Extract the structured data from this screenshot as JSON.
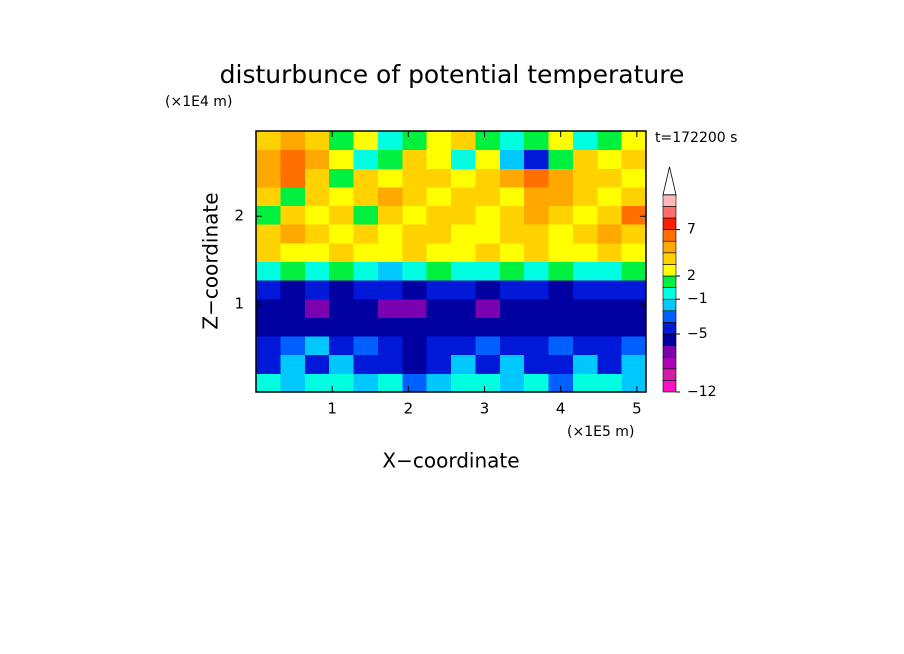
{
  "chart_data": {
    "type": "contour",
    "title": "disturbunce of potential temperature",
    "time_label": "t=172200 s",
    "y_unit": "(×1E4 m)",
    "x_unit": "(×1E5 m)",
    "xlabel": "X−coordinate",
    "ylabel": "Z−coordinate",
    "xlim": [
      0,
      5.12
    ],
    "ylim": [
      0,
      2.97
    ],
    "xticks": [
      1,
      2,
      3,
      4,
      5
    ],
    "yticks": [
      1,
      2
    ],
    "levels": [
      -12,
      -10,
      -8,
      -7,
      -6,
      -5,
      -4,
      -2,
      -1,
      1,
      2,
      3,
      5,
      6,
      7,
      9,
      11,
      13
    ],
    "colors": [
      "#ff10c8",
      "#d81aa8",
      "#b000b8",
      "#7a00b0",
      "#0000a0",
      "#0018d8",
      "#0060ff",
      "#00c8ff",
      "#00ffe0",
      "#00f040",
      "#ffff00",
      "#ffd200",
      "#ffa800",
      "#ff7000",
      "#ff1e00",
      "#ff6e6e",
      "#ffb8b8"
    ],
    "colorbar_ticks": [
      {
        "value": -12,
        "label": "−12"
      },
      {
        "value": -5,
        "label": "−5"
      },
      {
        "value": -1,
        "label": "−1"
      },
      2,
      7
    ],
    "z": [
      [
        0,
        -1.5,
        0,
        0,
        -1.5,
        0,
        -3,
        -1.5,
        0,
        0,
        -1.5,
        0,
        -3,
        0,
        0,
        -1.5
      ],
      [
        -4.5,
        -1.5,
        -4.5,
        -1.5,
        -4.5,
        -4.5,
        -5.5,
        -4.5,
        -1.5,
        -4.5,
        -1.5,
        -4.5,
        -4.5,
        -1.5,
        -4.5,
        -1.5
      ],
      [
        -4.5,
        -3,
        -1.5,
        -4.5,
        -3,
        -4.5,
        -5.5,
        -4.5,
        -4.5,
        -3,
        -4.5,
        -4.5,
        -3,
        -4.5,
        -4.5,
        -3
      ],
      [
        -5.5,
        -5.5,
        -5.5,
        -5.5,
        -5.5,
        -5.5,
        -5.5,
        -5.5,
        -5.5,
        -5.5,
        -5.5,
        -5.5,
        -5.5,
        -5.5,
        -5.5,
        -5.5
      ],
      [
        -5.5,
        -5.5,
        -6.5,
        -5.5,
        -5.5,
        -6.5,
        -6.5,
        -5.5,
        -5.5,
        -6.5,
        -5.5,
        -5.5,
        -5.5,
        -5.5,
        -5.5,
        -5.5
      ],
      [
        -4.5,
        -5.5,
        -4.5,
        -5.5,
        -4.5,
        -4.5,
        -5.5,
        -4.5,
        -4.5,
        -5.5,
        -4.5,
        -4.5,
        -5.5,
        -4.5,
        -4.5,
        -4.5
      ],
      [
        0,
        1.5,
        0,
        1.5,
        0,
        -1.5,
        0,
        1.5,
        0,
        0,
        1.5,
        0,
        1.5,
        0,
        0,
        1.5
      ],
      [
        4,
        2.5,
        2.5,
        4,
        2.5,
        2.5,
        4,
        2.5,
        2.5,
        4,
        2.5,
        4,
        2.5,
        2.5,
        4,
        2.5
      ],
      [
        4,
        5.5,
        4,
        2.5,
        4,
        2.5,
        4,
        4,
        2.5,
        2.5,
        4,
        4,
        2.5,
        4,
        5.5,
        4
      ],
      [
        1.5,
        4,
        2.5,
        4,
        1.5,
        4,
        2.5,
        4,
        4,
        2.5,
        4,
        5.5,
        4,
        2.5,
        4,
        6.5
      ],
      [
        4,
        1.5,
        4,
        2.5,
        4,
        5.5,
        4,
        2.5,
        4,
        4,
        2.5,
        5.5,
        5.5,
        4,
        2.5,
        4
      ],
      [
        5.5,
        6.5,
        4,
        1.5,
        4,
        2.5,
        4,
        4,
        2.5,
        4,
        5.5,
        6.5,
        5.5,
        4,
        4,
        2.5
      ],
      [
        5.5,
        6.5,
        5.5,
        2.5,
        0,
        1.5,
        4,
        2.5,
        0,
        2.5,
        -1.5,
        -4.5,
        1.5,
        4,
        2.5,
        4
      ],
      [
        4,
        5.5,
        4,
        1.5,
        2.5,
        0,
        1.5,
        2.5,
        4,
        1.5,
        0,
        1.5,
        2.5,
        0,
        1.5,
        2.5
      ]
    ]
  }
}
